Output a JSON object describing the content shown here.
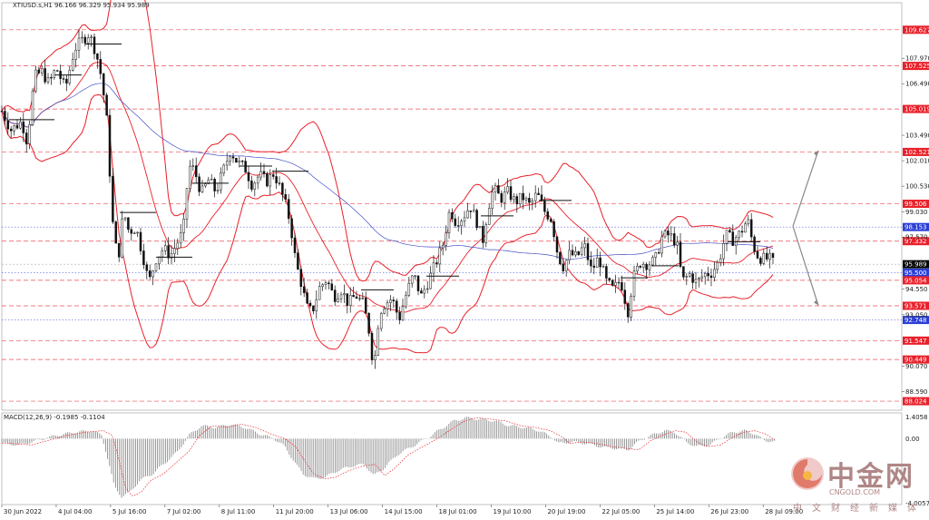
{
  "chart_data": [
    {
      "type": "candlestick",
      "title": "XTIUSD.s,H1  96.166 96.329 95.934 95.989",
      "ylim": [
        87.5,
        111.2
      ],
      "y_ticks": [
        "107.970",
        "106.490",
        "103.490",
        "102.010",
        "100.530",
        "99.030",
        "97.570",
        "94.550",
        "93.050",
        "90.070",
        "88.590"
      ],
      "x_ticks": [
        "30 Jun 2022",
        "4 Jul 04:00",
        "5 Jul 16:00",
        "7 Jul 02:00",
        "8 Jul 11:00",
        "11 Jul 20:00",
        "13 Jul 06:00",
        "14 Jul 15:00",
        "18 Jul 01:00",
        "19 Jul 10:00",
        "20 Jul 19:00",
        "22 Jul 05:00",
        "25 Jul 14:00",
        "26 Jul 23:00",
        "28 Jul 09:00"
      ],
      "current_price": 95.989,
      "level_lines": [
        {
          "label": "109.627",
          "value": 109.627,
          "color": "#e8202a"
        },
        {
          "label": "107.525",
          "value": 107.525,
          "color": "#e8202a"
        },
        {
          "label": "105.019",
          "value": 105.019,
          "color": "#e8202a"
        },
        {
          "label": "102.521",
          "value": 102.521,
          "color": "#e8202a"
        },
        {
          "label": "99.506",
          "value": 99.506,
          "color": "#e8202a"
        },
        {
          "label": "98.153",
          "value": 98.153,
          "color": "#2b3fd6"
        },
        {
          "label": "97.332",
          "value": 97.332,
          "color": "#e8202a"
        },
        {
          "label": "95.989",
          "value": 95.989,
          "color": "#000000"
        },
        {
          "label": "95.500",
          "value": 95.5,
          "color": "#2b3fd6"
        },
        {
          "label": "95.054",
          "value": 95.054,
          "color": "#e8202a"
        },
        {
          "label": "93.571",
          "value": 93.571,
          "color": "#e8202a"
        },
        {
          "label": "92.748",
          "value": 92.748,
          "color": "#2b3fd6"
        },
        {
          "label": "91.547",
          "value": 91.547,
          "color": "#e8202a"
        },
        {
          "label": "90.449",
          "value": 90.449,
          "color": "#e8202a"
        },
        {
          "label": "88.024",
          "value": 88.024,
          "color": "#e8202a"
        }
      ],
      "price_path": [
        [
          0,
          104.9
        ],
        [
          10,
          103.8
        ],
        [
          22,
          104.3
        ],
        [
          28,
          103.1
        ],
        [
          36,
          106.9
        ],
        [
          44,
          107.2
        ],
        [
          52,
          106.5
        ],
        [
          60,
          107.4
        ],
        [
          70,
          106.2
        ],
        [
          80,
          108.5
        ],
        [
          88,
          109.0
        ],
        [
          96,
          109.4
        ],
        [
          104,
          108.3
        ],
        [
          110,
          106.8
        ],
        [
          116,
          104.2
        ],
        [
          122,
          98.5
        ],
        [
          128,
          96.1
        ],
        [
          134,
          99.1
        ],
        [
          140,
          97.9
        ],
        [
          148,
          98.1
        ],
        [
          156,
          96.4
        ],
        [
          162,
          94.9
        ],
        [
          170,
          96.3
        ],
        [
          178,
          96.9
        ],
        [
          186,
          96.5
        ],
        [
          194,
          97.3
        ],
        [
          200,
          97.9
        ],
        [
          206,
          101.7
        ],
        [
          212,
          101.5
        ],
        [
          220,
          100.1
        ],
        [
          228,
          100.9
        ],
        [
          236,
          100.2
        ],
        [
          244,
          101.4
        ],
        [
          252,
          102.6
        ],
        [
          260,
          101.9
        ],
        [
          268,
          101.6
        ],
        [
          276,
          100.6
        ],
        [
          284,
          101.2
        ],
        [
          292,
          100.8
        ],
        [
          300,
          101.3
        ],
        [
          306,
          100.5
        ],
        [
          312,
          99.6
        ],
        [
          318,
          98.4
        ],
        [
          324,
          96.1
        ],
        [
          330,
          94.9
        ],
        [
          336,
          93.5
        ],
        [
          342,
          93.2
        ],
        [
          350,
          94.6
        ],
        [
          358,
          95.1
        ],
        [
          366,
          94.1
        ],
        [
          374,
          94.5
        ],
        [
          382,
          93.7
        ],
        [
          390,
          94.2
        ],
        [
          398,
          93.7
        ],
        [
          404,
          92.4
        ],
        [
          410,
          89.9
        ],
        [
          416,
          93.2
        ],
        [
          422,
          93.7
        ],
        [
          430,
          94.0
        ],
        [
          438,
          92.8
        ],
        [
          446,
          94.3
        ],
        [
          454,
          95.4
        ],
        [
          462,
          94.1
        ],
        [
          470,
          95.0
        ],
        [
          478,
          96.0
        ],
        [
          486,
          97.1
        ],
        [
          494,
          99.2
        ],
        [
          500,
          98.5
        ],
        [
          508,
          98.7
        ],
        [
          516,
          99.4
        ],
        [
          524,
          98.4
        ],
        [
          530,
          97.3
        ],
        [
          536,
          99.3
        ],
        [
          542,
          100.4
        ],
        [
          550,
          99.8
        ],
        [
          558,
          100.2
        ],
        [
          566,
          99.6
        ],
        [
          574,
          99.9
        ],
        [
          582,
          99.4
        ],
        [
          590,
          100.1
        ],
        [
          598,
          99.1
        ],
        [
          606,
          98.6
        ],
        [
          612,
          96.8
        ],
        [
          618,
          95.8
        ],
        [
          626,
          96.6
        ],
        [
          634,
          96.4
        ],
        [
          642,
          97.1
        ],
        [
          650,
          95.6
        ],
        [
          658,
          96.4
        ],
        [
          666,
          95.0
        ],
        [
          674,
          94.5
        ],
        [
          682,
          95.1
        ],
        [
          690,
          93.2
        ],
        [
          696,
          95.2
        ],
        [
          704,
          96.1
        ],
        [
          712,
          96.0
        ],
        [
          720,
          96.2
        ],
        [
          728,
          97.6
        ],
        [
          736,
          97.7
        ],
        [
          744,
          97.2
        ],
        [
          750,
          95.0
        ],
        [
          758,
          95.4
        ],
        [
          766,
          94.9
        ],
        [
          774,
          95.4
        ],
        [
          782,
          95.5
        ],
        [
          790,
          96.1
        ],
        [
          798,
          97.7
        ],
        [
          806,
          97.4
        ],
        [
          814,
          97.8
        ],
        [
          822,
          98.6
        ],
        [
          828,
          97.1
        ],
        [
          834,
          96.4
        ],
        [
          840,
          96.3
        ],
        [
          846,
          96.3
        ],
        [
          852,
          95.989
        ]
      ],
      "x_max": 852
    },
    {
      "type": "histogram",
      "title": "MACD(12,26,9) -0.1985 -0.1104",
      "ylim": [
        -4.1,
        1.6
      ],
      "y_ticks": [
        "1.4058",
        "0.00",
        "-4.0057"
      ],
      "macd_path": [
        [
          0,
          -0.3
        ],
        [
          20,
          -0.4
        ],
        [
          40,
          -0.1
        ],
        [
          60,
          0.2
        ],
        [
          80,
          0.4
        ],
        [
          100,
          0.5
        ],
        [
          110,
          0.2
        ],
        [
          118,
          -1.5
        ],
        [
          124,
          -3.0
        ],
        [
          132,
          -3.6
        ],
        [
          142,
          -3.3
        ],
        [
          152,
          -2.6
        ],
        [
          166,
          -2.2
        ],
        [
          180,
          -1.5
        ],
        [
          194,
          -0.8
        ],
        [
          206,
          0.2
        ],
        [
          220,
          0.8
        ],
        [
          236,
          0.7
        ],
        [
          252,
          0.9
        ],
        [
          268,
          0.7
        ],
        [
          284,
          0.3
        ],
        [
          300,
          0.0
        ],
        [
          312,
          -0.5
        ],
        [
          322,
          -1.4
        ],
        [
          332,
          -2.2
        ],
        [
          344,
          -2.5
        ],
        [
          356,
          -2.4
        ],
        [
          370,
          -2.0
        ],
        [
          386,
          -1.7
        ],
        [
          400,
          -1.6
        ],
        [
          410,
          -2.3
        ],
        [
          420,
          -1.9
        ],
        [
          436,
          -1.0
        ],
        [
          452,
          -0.5
        ],
        [
          468,
          0.0
        ],
        [
          484,
          0.6
        ],
        [
          498,
          1.1
        ],
        [
          512,
          1.3
        ],
        [
          528,
          1.2
        ],
        [
          544,
          1.1
        ],
        [
          560,
          0.8
        ],
        [
          576,
          0.7
        ],
        [
          592,
          0.5
        ],
        [
          606,
          0.1
        ],
        [
          614,
          -0.3
        ],
        [
          628,
          -0.2
        ],
        [
          644,
          -0.3
        ],
        [
          660,
          -0.5
        ],
        [
          676,
          -0.6
        ],
        [
          690,
          -0.7
        ],
        [
          704,
          -0.1
        ],
        [
          716,
          0.2
        ],
        [
          730,
          0.5
        ],
        [
          742,
          0.4
        ],
        [
          754,
          -0.2
        ],
        [
          766,
          -0.5
        ],
        [
          780,
          -0.4
        ],
        [
          794,
          0.1
        ],
        [
          806,
          0.4
        ],
        [
          818,
          0.5
        ],
        [
          830,
          0.3
        ],
        [
          840,
          -0.1
        ],
        [
          852,
          -0.2
        ]
      ],
      "x_max": 852
    }
  ],
  "watermark": {
    "name": "中金网",
    "url": "CNGOLD.COM",
    "tagline": "中文财经新媒体"
  }
}
